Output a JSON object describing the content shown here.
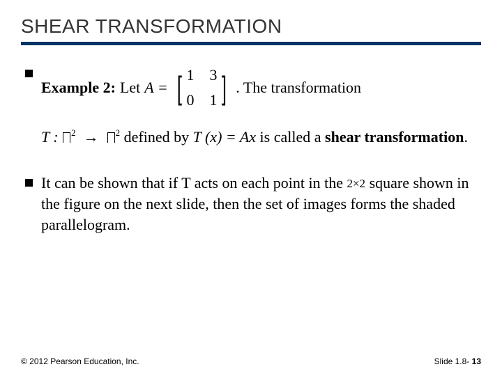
{
  "colors": {
    "rule": "#003366",
    "bg": "#ffffff",
    "text": "#000000",
    "title_text": "#333333"
  },
  "title": "SHEAR TRANSFORMATION",
  "bullet1": {
    "lead": "Example 2:",
    "let": "Let",
    "A_eq": "A =",
    "matrix": {
      "r1c1": "1",
      "r1c2": "3",
      "r2c1": "0",
      "r2c2": "1"
    },
    "tail": ". The transformation",
    "line2_pre": "T : ",
    "line2_mid": "defined by",
    "Tx_eq": "T (x) = ",
    "Ax": "Ax",
    "line2_post": " is called a ",
    "shear": "shear transformation",
    "period": "."
  },
  "bullet2": {
    "text_a": "It can be shown that if T acts on each point in the ",
    "two_by_two": "2×2",
    "text_b": "square shown in the figure on the next slide, then the set of images forms the shaded parallelogram."
  },
  "footer": {
    "left": "© 2012 Pearson Education, Inc.",
    "right_label": "Slide 1.8- ",
    "right_num": "13"
  }
}
